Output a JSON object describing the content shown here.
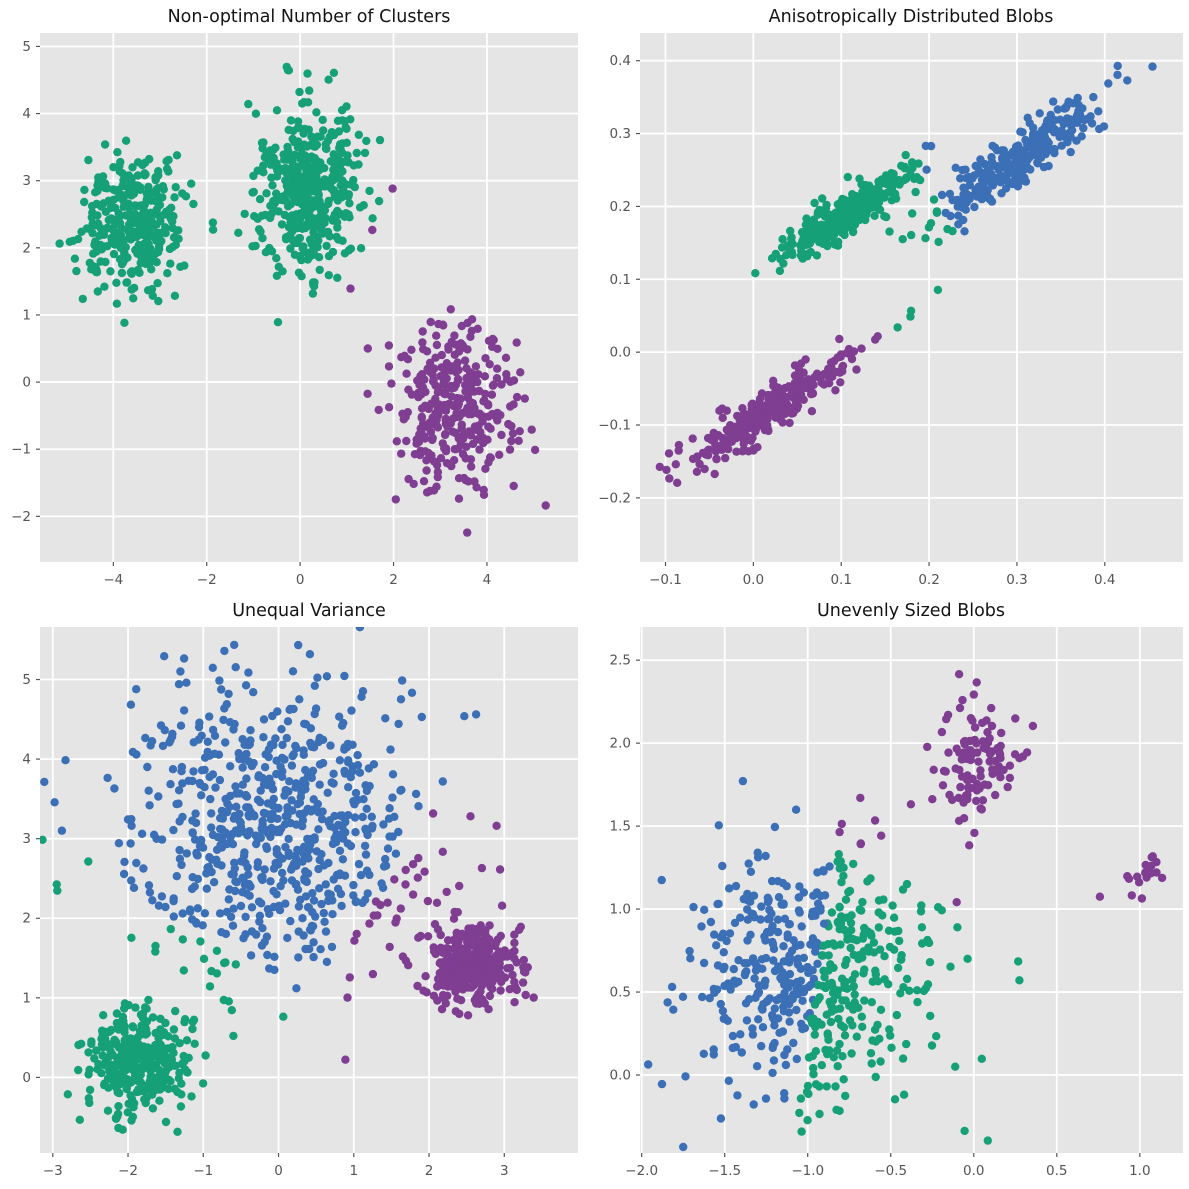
{
  "figure": {
    "background": "#ffffff",
    "panel_background": "#e5e5e5",
    "grid_color": "#ffffff",
    "tick_color": "#555555",
    "title_color": "#141414",
    "point_radius": 4.2,
    "palette": {
      "blue": "#3b6fb6",
      "green": "#16a078",
      "purple": "#7f3e91"
    }
  },
  "chart_data": [
    {
      "type": "scatter",
      "title": "Non-optimal Number of Clusters",
      "xlim": [
        -5.57,
        5.95
      ],
      "ylim": [
        -2.68,
        5.2
      ],
      "xticks": [
        -4,
        -2,
        0,
        2,
        4
      ],
      "yticks": [
        -2,
        -1,
        0,
        1,
        2,
        3,
        4,
        5
      ],
      "xtick_labels": [
        "−4",
        "−2",
        "0",
        "2",
        "4"
      ],
      "ytick_labels": [
        "−2",
        "−1",
        "0",
        "1",
        "2",
        "3",
        "4",
        "5"
      ],
      "grid": true,
      "assignment": "nearest-centroid",
      "blobs": [
        {
          "n": 330,
          "center": [
            -3.55,
            2.4
          ],
          "std": [
            0.52,
            0.52
          ],
          "angle_deg": 0,
          "seed": 101
        },
        {
          "n": 440,
          "center": [
            0.2,
            2.85
          ],
          "std": [
            0.56,
            0.62
          ],
          "angle_deg": 0,
          "seed": 102
        },
        {
          "n": 330,
          "center": [
            3.3,
            -0.4
          ],
          "std": [
            0.62,
            0.6
          ],
          "angle_deg": 0,
          "seed": 103
        }
      ],
      "kmeans_centroids": [
        {
          "xy": [
            -1.65,
            2.62
          ],
          "color": "green"
        },
        {
          "xy": [
            3.3,
            -0.4
          ],
          "color": "purple"
        }
      ]
    },
    {
      "type": "scatter",
      "title": "Anisotropically Distributed Blobs",
      "xlim": [
        -0.129,
        0.489
      ],
      "ylim": [
        -0.288,
        0.438
      ],
      "xticks": [
        -0.1,
        0.0,
        0.1,
        0.2,
        0.3,
        0.4
      ],
      "yticks": [
        -0.2,
        -0.1,
        0.0,
        0.1,
        0.2,
        0.3,
        0.4
      ],
      "xtick_labels": [
        "−0.1",
        "0.0",
        "0.1",
        "0.2",
        "0.3",
        "0.4"
      ],
      "ytick_labels": [
        "−0.2",
        "−0.1",
        "0.0",
        "0.1",
        "0.2",
        "0.3",
        "0.4"
      ],
      "grid": true,
      "assignment": "nearest-centroid",
      "blobs": [
        {
          "n": 290,
          "center": [
            0.022,
            -0.075
          ],
          "std": [
            0.062,
            0.013
          ],
          "angle_deg": 40,
          "seed": 201
        },
        {
          "n": 290,
          "center": [
            0.105,
            0.19
          ],
          "std": [
            0.048,
            0.011
          ],
          "angle_deg": 40,
          "seed": 202
        },
        {
          "n": 290,
          "center": [
            0.3,
            0.265
          ],
          "std": [
            0.062,
            0.014
          ],
          "angle_deg": 42,
          "seed": 203
        }
      ],
      "kmeans_centroids": [
        {
          "xy": [
            0.025,
            -0.075
          ],
          "color": "purple"
        },
        {
          "xy": [
            0.1,
            0.185
          ],
          "color": "green"
        },
        {
          "xy": [
            0.305,
            0.27
          ],
          "color": "blue"
        }
      ]
    },
    {
      "type": "scatter",
      "title": "Unequal Variance",
      "xlim": [
        -3.17,
        3.98
      ],
      "ylim": [
        -0.95,
        5.66
      ],
      "xticks": [
        -3,
        -2,
        -1,
        0,
        1,
        2,
        3
      ],
      "yticks": [
        0,
        1,
        2,
        3,
        4,
        5
      ],
      "xtick_labels": [
        "−3",
        "−2",
        "−1",
        "0",
        "1",
        "2",
        "3"
      ],
      "ytick_labels": [
        "0",
        "1",
        "2",
        "3",
        "4",
        "5"
      ],
      "grid": true,
      "assignment": "nearest-centroid",
      "blobs": [
        {
          "n": 720,
          "center": [
            0.0,
            3.1
          ],
          "std": [
            1.0,
            0.92
          ],
          "angle_deg": 0,
          "seed": 301
        },
        {
          "n": 330,
          "center": [
            -1.83,
            0.22
          ],
          "std": [
            0.33,
            0.33
          ],
          "angle_deg": 0,
          "seed": 302
        },
        {
          "n": 320,
          "center": [
            2.62,
            1.38
          ],
          "std": [
            0.28,
            0.23
          ],
          "angle_deg": 0,
          "seed": 303
        }
      ],
      "kmeans_centroids": [
        {
          "xy": [
            0.0,
            3.05
          ],
          "color": "blue"
        },
        {
          "xy": [
            -1.8,
            0.3
          ],
          "color": "green"
        },
        {
          "xy": [
            2.58,
            1.4
          ],
          "color": "purple"
        }
      ]
    },
    {
      "type": "scatter",
      "title": "Unevenly Sized Blobs",
      "xlim": [
        -2.01,
        1.26
      ],
      "ylim": [
        -0.47,
        2.7
      ],
      "xticks": [
        -2.0,
        -1.5,
        -1.0,
        -0.5,
        0.0,
        0.5,
        1.0
      ],
      "yticks": [
        0.0,
        0.5,
        1.0,
        1.5,
        2.0,
        2.5
      ],
      "xtick_labels": [
        "−2.0",
        "−1.5",
        "−1.0",
        "−0.5",
        "0.0",
        "0.5",
        "1.0"
      ],
      "ytick_labels": [
        "0.0",
        "0.5",
        "1.0",
        "1.5",
        "2.0",
        "2.5"
      ],
      "grid": true,
      "assignment": "nearest-centroid",
      "blobs": [
        {
          "n": 520,
          "center": [
            -1.0,
            0.6
          ],
          "std": [
            0.38,
            0.38
          ],
          "angle_deg": 0,
          "seed": 401
        },
        {
          "n": 110,
          "center": [
            0.0,
            1.88
          ],
          "std": [
            0.16,
            0.18
          ],
          "angle_deg": 0,
          "seed": 402
        },
        {
          "n": 18,
          "center": [
            1.02,
            1.2
          ],
          "std": [
            0.07,
            0.08
          ],
          "angle_deg": 0,
          "seed": 403
        }
      ],
      "kmeans_centroids": [
        {
          "xy": [
            -1.28,
            0.62
          ],
          "color": "blue"
        },
        {
          "xy": [
            -0.62,
            0.52
          ],
          "color": "green"
        },
        {
          "xy": [
            0.1,
            1.72
          ],
          "color": "purple"
        }
      ]
    }
  ]
}
